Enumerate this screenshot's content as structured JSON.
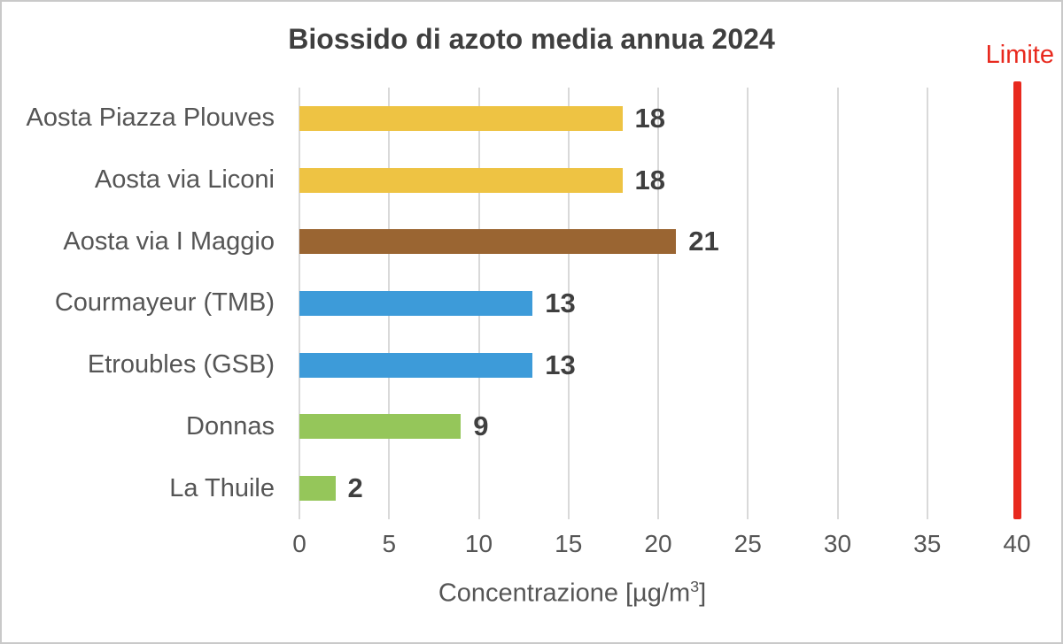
{
  "frame": {
    "background": "#FFFFFF",
    "border_color": "#C9C9C9"
  },
  "chart_data": {
    "type": "bar",
    "orientation": "horizontal",
    "title": "Biossido di azoto media annua 2024",
    "categories": [
      "Aosta Piazza Plouves",
      "Aosta via Liconi",
      "Aosta via I Maggio",
      "Courmayeur (TMB)",
      "Etroubles (GSB)",
      "Donnas",
      "La Thuile"
    ],
    "values": [
      18,
      18,
      21,
      13,
      13,
      9,
      2
    ],
    "value_labels": [
      "18",
      "18",
      "21",
      "13",
      "13",
      "9",
      "2"
    ],
    "bar_colors": [
      "#EEC343",
      "#EEC343",
      "#9A6532",
      "#3D9BD9",
      "#3D9BD9",
      "#95C65A",
      "#95C65A"
    ],
    "xlim": [
      0,
      40
    ],
    "xticks": [
      0,
      5,
      10,
      15,
      20,
      25,
      30,
      35,
      40
    ],
    "xlabel": {
      "prefix": "Concentrazione [µg/m",
      "superscript": "3",
      "suffix": "]"
    },
    "grid": true,
    "legend": "none",
    "limit_line": {
      "label": "Limite",
      "value": 40,
      "color": "#E8291E"
    },
    "colors": {
      "title_text": "#3F3F3F",
      "axis_text": "#555555",
      "value_text": "#3F3F3F",
      "gridline": "#D9D9D9"
    }
  }
}
